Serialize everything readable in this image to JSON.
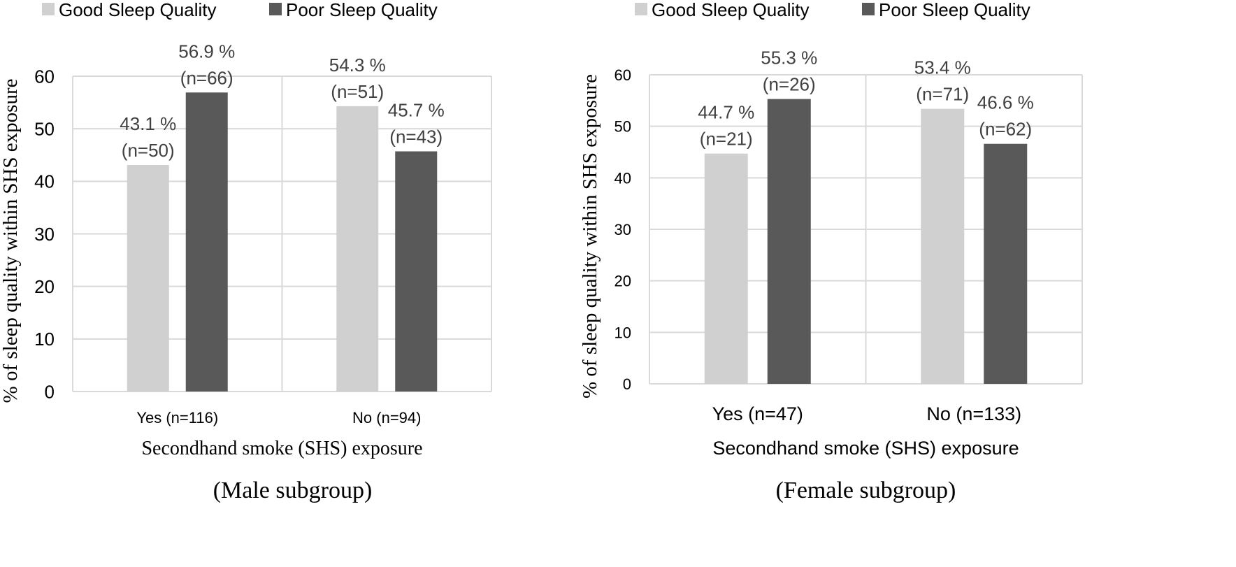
{
  "legend": {
    "good_label": "Good Sleep Quality",
    "poor_label": "Poor Sleep Quality"
  },
  "colors": {
    "good": "#d0d0d0",
    "poor": "#595959",
    "grid": "#d9d9d9",
    "text": "#404040",
    "axis_text": "#000000"
  },
  "chart_data": [
    {
      "type": "bar",
      "subtitle": "(Male subgroup)",
      "xlabel": "Secondhand smoke (SHS) exposure",
      "ylabel": "% of sleep quality within SHS exposure",
      "ylim": [
        0,
        60
      ],
      "yticks": [
        0,
        10,
        20,
        30,
        40,
        50,
        60
      ],
      "grid": true,
      "legend_position": "top",
      "categories": [
        "Yes (n=116)",
        "No (n=94)"
      ],
      "series": [
        {
          "name": "Good Sleep Quality",
          "values": [
            43.1,
            54.3
          ],
          "labels": [
            [
              "43.1 %",
              "(n=50)"
            ],
            [
              "54.3 %",
              "(n=51)"
            ]
          ]
        },
        {
          "name": "Poor Sleep Quality",
          "values": [
            56.9,
            45.7
          ],
          "labels": [
            [
              "56.9 %",
              "(n=66)"
            ],
            [
              "45.7 %",
              "(n=43)"
            ]
          ]
        }
      ]
    },
    {
      "type": "bar",
      "subtitle": "(Female subgroup)",
      "xlabel": "Secondhand smoke (SHS) exposure",
      "ylabel": "% of sleep quality within SHS exposure",
      "ylim": [
        0,
        60
      ],
      "yticks": [
        0,
        10,
        20,
        30,
        40,
        50,
        60
      ],
      "grid": true,
      "legend_position": "top",
      "categories": [
        "Yes (n=47)",
        "No (n=133)"
      ],
      "series": [
        {
          "name": "Good Sleep Quality",
          "values": [
            44.7,
            53.4
          ],
          "labels": [
            [
              "44.7 %",
              "(n=21)"
            ],
            [
              "53.4 %",
              "(n=71)"
            ]
          ]
        },
        {
          "name": "Poor Sleep Quality",
          "values": [
            55.3,
            46.6
          ],
          "labels": [
            [
              "55.3 %",
              "(n=26)"
            ],
            [
              "46.6 %",
              "(n=62)"
            ]
          ]
        }
      ]
    }
  ]
}
